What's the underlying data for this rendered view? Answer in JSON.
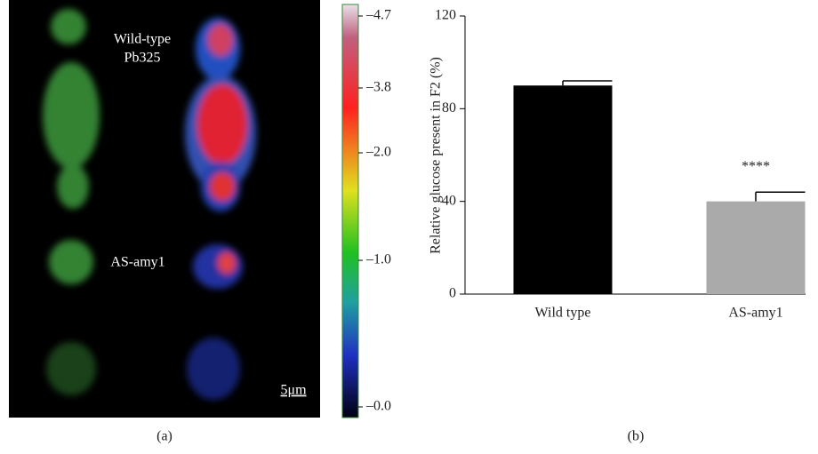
{
  "panel_a": {
    "label": "(a)",
    "wild_type_label": "Wild-type",
    "strain_label": "Pb325",
    "mutant_label": "AS-amy1",
    "scale_bar": "5μm",
    "colorbar_labels": [
      "–4.7",
      "–3.8",
      "–2.0",
      "–1.0",
      "–0.0"
    ]
  },
  "panel_b": {
    "label": "(b)"
  },
  "chart_data": {
    "type": "bar",
    "y_label": "Relative glucose present in F2 (%)",
    "categories": [
      "Wild type",
      "AS-amy1"
    ],
    "values": [
      90,
      40
    ],
    "errors": [
      2,
      4
    ],
    "colors": [
      "#000000",
      "#aaaaaa"
    ],
    "bar_labels": [
      null,
      "****"
    ],
    "ylim": [
      0,
      120
    ],
    "yticks": [
      0,
      40,
      80,
      120
    ]
  }
}
